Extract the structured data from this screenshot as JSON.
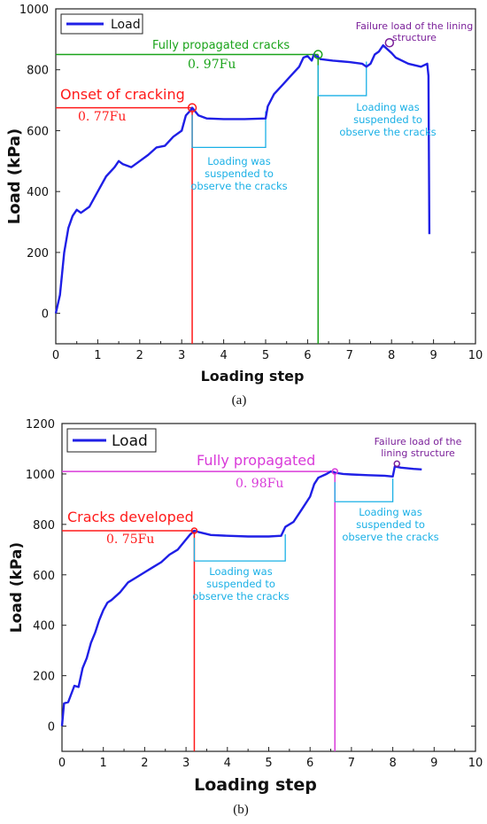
{
  "colors": {
    "line": "#1f1fe6",
    "red": "#ff1a1a",
    "green": "#1aa31a",
    "purple": "#7a1f99",
    "magenta": "#d93ad9",
    "cyan": "#1ab0e6"
  },
  "chart_data": [
    {
      "panel": "(a)",
      "type": "line",
      "xlabel": "Loading step",
      "ylabel": "Load (kPa)",
      "xlim": [
        0,
        10
      ],
      "ylim": [
        -100,
        1000
      ],
      "xticks": [
        "0",
        "1",
        "2",
        "3",
        "4",
        "5",
        "6",
        "7",
        "8",
        "9",
        "10"
      ],
      "yticks": [
        "0",
        "200",
        "400",
        "600",
        "800",
        "1000"
      ],
      "legend": {
        "label": "Load",
        "position": "top-left"
      },
      "series": [
        {
          "name": "Load",
          "x": [
            0.0,
            0.1,
            0.15,
            0.2,
            0.3,
            0.4,
            0.5,
            0.6,
            0.8,
            1.0,
            1.2,
            1.4,
            1.5,
            1.6,
            1.8,
            2.0,
            2.2,
            2.4,
            2.6,
            2.8,
            3.0,
            3.1,
            3.2,
            3.25,
            3.4,
            3.6,
            4.0,
            4.5,
            5.0,
            5.05,
            5.2,
            5.4,
            5.6,
            5.8,
            5.9,
            6.0,
            6.1,
            6.15,
            6.2,
            6.25,
            6.3,
            6.6,
            7.0,
            7.3,
            7.4,
            7.5,
            7.6,
            7.7,
            7.8,
            8.0,
            8.1,
            8.4,
            8.7,
            8.85,
            8.88,
            8.9
          ],
          "y": [
            0,
            60,
            130,
            200,
            280,
            320,
            340,
            330,
            350,
            400,
            450,
            480,
            500,
            490,
            480,
            500,
            520,
            545,
            550,
            580,
            600,
            650,
            665,
            675,
            650,
            640,
            638,
            638,
            640,
            680,
            720,
            750,
            780,
            810,
            840,
            845,
            830,
            850,
            845,
            842,
            835,
            830,
            825,
            820,
            810,
            820,
            850,
            860,
            880,
            855,
            840,
            820,
            810,
            820,
            780,
            260
          ]
        }
      ],
      "annotations": [
        {
          "label": "Onset of cracking",
          "ratio": "0. 77Fu",
          "color": "red",
          "x": 3.25,
          "y": 675
        },
        {
          "label": "Fully propagated cracks",
          "ratio": "0. 97Fu",
          "color": "green",
          "x": 6.25,
          "y": 850
        },
        {
          "label": "Failure load of the lining structure",
          "color": "purple",
          "x": 7.95,
          "y": 880
        },
        {
          "label": "Loading was suspended to observe the cracks",
          "color": "cyan",
          "x": [
            3.25,
            5.0
          ],
          "y": 545
        },
        {
          "label": "Loading was suspended to observe the cracks",
          "color": "cyan",
          "x": [
            6.25,
            7.4
          ],
          "y": 715
        }
      ]
    },
    {
      "panel": "(b)",
      "type": "line",
      "xlabel": "Loading step",
      "ylabel": "Load (kPa)",
      "xlim": [
        0,
        10
      ],
      "ylim": [
        -100,
        1200
      ],
      "xticks": [
        "0",
        "1",
        "2",
        "3",
        "4",
        "5",
        "6",
        "7",
        "8",
        "9",
        "10"
      ],
      "yticks": [
        "0",
        "200",
        "400",
        "600",
        "800",
        "1000",
        "1200"
      ],
      "legend": {
        "label": "Load",
        "position": "top-left"
      },
      "series": [
        {
          "name": "Load",
          "x": [
            0.0,
            0.05,
            0.15,
            0.3,
            0.4,
            0.5,
            0.6,
            0.7,
            0.8,
            0.9,
            1.0,
            1.1,
            1.2,
            1.4,
            1.6,
            1.8,
            2.0,
            2.2,
            2.4,
            2.6,
            2.8,
            3.0,
            3.1,
            3.2,
            3.3,
            3.6,
            4.0,
            4.5,
            5.0,
            5.3,
            5.4,
            5.6,
            5.8,
            6.0,
            6.1,
            6.2,
            6.4,
            6.5,
            6.6,
            6.8,
            7.0,
            7.4,
            7.8,
            8.0,
            8.05,
            8.2,
            8.5,
            8.7
          ],
          "y": [
            0,
            90,
            95,
            160,
            155,
            230,
            270,
            330,
            370,
            420,
            460,
            490,
            500,
            530,
            570,
            590,
            610,
            630,
            650,
            680,
            700,
            740,
            760,
            775,
            770,
            758,
            755,
            752,
            752,
            755,
            790,
            810,
            860,
            910,
            960,
            985,
            1000,
            1010,
            1005,
            1000,
            998,
            995,
            993,
            990,
            1030,
            1025,
            1020,
            1018
          ]
        }
      ],
      "annotations": [
        {
          "label": "Cracks developed",
          "ratio": "0. 75Fu",
          "color": "red",
          "x": 3.2,
          "y": 775
        },
        {
          "label": "Fully propagated",
          "ratio": "0. 98Fu",
          "color": "magenta",
          "x": 6.6,
          "y": 1010
        },
        {
          "label": "Failure load of the lining structure",
          "color": "purple",
          "x": 8.1,
          "y": 1030
        },
        {
          "label": "Loading was suspended to observe the cracks",
          "color": "cyan",
          "x": [
            3.2,
            5.4
          ],
          "y": 655
        },
        {
          "label": "Loading was suspended to observe the cracks",
          "color": "cyan",
          "x": [
            6.6,
            8.0
          ],
          "y": 890
        }
      ]
    }
  ]
}
